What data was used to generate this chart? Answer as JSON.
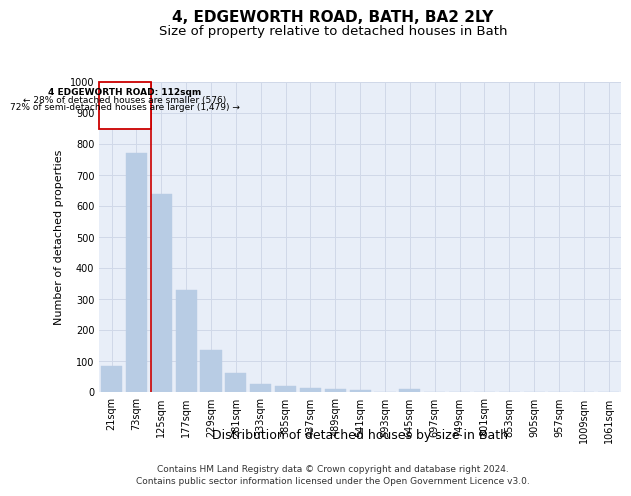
{
  "title": "4, EDGEWORTH ROAD, BATH, BA2 2LY",
  "subtitle": "Size of property relative to detached houses in Bath",
  "xlabel": "Distribution of detached houses by size in Bath",
  "ylabel": "Number of detached properties",
  "footer_line1": "Contains HM Land Registry data © Crown copyright and database right 2024.",
  "footer_line2": "Contains public sector information licensed under the Open Government Licence v3.0.",
  "categories": [
    "21sqm",
    "73sqm",
    "125sqm",
    "177sqm",
    "229sqm",
    "281sqm",
    "333sqm",
    "385sqm",
    "437sqm",
    "489sqm",
    "541sqm",
    "593sqm",
    "645sqm",
    "697sqm",
    "749sqm",
    "801sqm",
    "853sqm",
    "905sqm",
    "957sqm",
    "1009sqm",
    "1061sqm"
  ],
  "values": [
    85,
    770,
    640,
    330,
    135,
    60,
    25,
    18,
    12,
    10,
    8,
    0,
    10,
    0,
    0,
    0,
    0,
    0,
    0,
    0,
    0
  ],
  "bar_color": "#b8cce4",
  "bar_edge_color": "#b8cce4",
  "highlight_index": 2,
  "highlight_line_color": "#cc0000",
  "annotation_box_color": "#cc0000",
  "annotation_text_line1": "4 EDGEWORTH ROAD: 112sqm",
  "annotation_text_line2": "← 28% of detached houses are smaller (576)",
  "annotation_text_line3": "72% of semi-detached houses are larger (1,479) →",
  "ylim": [
    0,
    1000
  ],
  "yticks": [
    0,
    100,
    200,
    300,
    400,
    500,
    600,
    700,
    800,
    900,
    1000
  ],
  "grid_color": "#d0d8e8",
  "bg_color": "#e8eef8",
  "title_fontsize": 11,
  "subtitle_fontsize": 9.5,
  "xlabel_fontsize": 9,
  "ylabel_fontsize": 8,
  "tick_fontsize": 7,
  "footer_fontsize": 6.5
}
